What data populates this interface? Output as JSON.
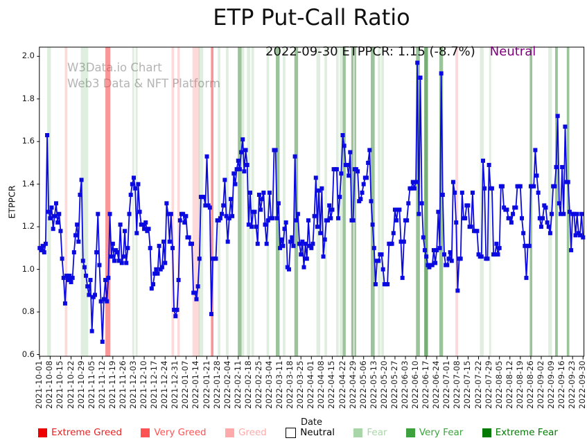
{
  "title": "ETP Put-Call Ratio",
  "watermark": {
    "line1": "W3Data.io Chart",
    "line2": "Web3 Data & NFT Platform"
  },
  "annotation": {
    "text": "2022-09-30 ETPPCR: 1.15 (-8.7%)",
    "sentiment": "Neutral",
    "sentiment_color": "#800080"
  },
  "y_axis": {
    "label": "ETPPCR",
    "ticks": [
      0.6,
      0.8,
      1.0,
      1.2,
      1.4,
      1.6,
      1.8,
      2.0
    ]
  },
  "x_axis": {
    "label": "Date",
    "tick_labels": [
      "2021-10-01",
      "2021-10-08",
      "2021-10-15",
      "2021-10-22",
      "2021-10-29",
      "2021-11-05",
      "2021-11-12",
      "2021-11-19",
      "2021-11-26",
      "2021-12-03",
      "2021-12-10",
      "2021-12-17",
      "2021-12-24",
      "2021-12-31",
      "2022-01-07",
      "2022-01-14",
      "2022-01-21",
      "2022-01-28",
      "2022-02-04",
      "2022-02-11",
      "2022-02-18",
      "2022-02-25",
      "2022-03-04",
      "2022-03-11",
      "2022-03-18",
      "2022-03-25",
      "2022-04-01",
      "2022-04-08",
      "2022-04-15",
      "2022-04-22",
      "2022-04-29",
      "2022-05-06",
      "2022-05-13",
      "2022-05-20",
      "2022-05-27",
      "2022-06-03",
      "2022-06-10",
      "2022-06-17",
      "2022-06-24",
      "2022-07-01",
      "2022-07-08",
      "2022-07-15",
      "2022-07-22",
      "2022-07-29",
      "2022-08-05",
      "2022-08-12",
      "2022-08-19",
      "2022-08-26",
      "2022-09-02",
      "2022-09-09",
      "2022-09-16",
      "2022-09-23",
      "2022-09-30"
    ]
  },
  "legend": {
    "items": [
      {
        "id": "extreme-greed",
        "label": "Extreme Greed",
        "color": "#ee0000",
        "text_color": "#e82222"
      },
      {
        "id": "very-greed",
        "label": "Very Greed",
        "color": "#ff5252",
        "text_color": "#ff5252"
      },
      {
        "id": "greed",
        "label": "Greed",
        "color": "#ffaaaa",
        "text_color": "#ffaaaa"
      },
      {
        "id": "neutral",
        "label": "Neutral",
        "color": "#ffffff",
        "text_color": "#000000",
        "border": "#000000"
      },
      {
        "id": "fear",
        "label": "Fear",
        "color": "#a9d6a9",
        "text_color": "#a9d6a9"
      },
      {
        "id": "very-fear",
        "label": "Very Fear",
        "color": "#3da23d",
        "text_color": "#3da23d"
      },
      {
        "id": "extreme-fear",
        "label": "Extreme Fear",
        "color": "#007a00",
        "text_color": "#007a00"
      }
    ]
  },
  "chart_data": {
    "type": "line",
    "title": "ETP Put-Call Ratio",
    "xlabel": "Date",
    "ylabel": "ETPPCR",
    "ylim": [
      0.6,
      2.0
    ],
    "x_start": "2021-10-01",
    "x_end": "2022-09-30",
    "line_color": "#0a0ae0",
    "marker": "square",
    "legend_position": "bottom",
    "grid": false,
    "latest": {
      "date": "2022-09-30",
      "value": 1.15,
      "change_pct": -8.7,
      "sentiment": "Neutral"
    },
    "series": [
      {
        "name": "ETPPCR",
        "daily_values": [
          1.1,
          1.09,
          1.11,
          1.08,
          1.12,
          1.63,
          1.27,
          1.24,
          1.29,
          1.19,
          1.25,
          1.31,
          1.22,
          1.26,
          1.18,
          1.05,
          0.96,
          0.84,
          0.97,
          0.95,
          0.97,
          0.94,
          0.96,
          1.08,
          1.16,
          1.21,
          1.13,
          1.35,
          1.42,
          1.04,
          1.01,
          0.97,
          0.92,
          0.88,
          0.95,
          0.71,
          0.87,
          0.88,
          1.08,
          1.26,
          1.02,
          0.85,
          0.66,
          0.86,
          0.95,
          0.85,
          0.96,
          1.26,
          1.06,
          1.12,
          1.04,
          1.09,
          1.08,
          1.04,
          1.21,
          1.03,
          1.06,
          1.18,
          1.03,
          1.1,
          1.26,
          1.35,
          1.4,
          1.43,
          1.38,
          1.17,
          1.4,
          1.27,
          1.21,
          1.21,
          1.19,
          1.22,
          1.18,
          1.19,
          1.1,
          0.91,
          0.93,
          0.98,
          1.0,
          0.98,
          1.11,
          1.0,
          1.01,
          1.13,
          1.03,
          1.31,
          1.26,
          1.13,
          1.26,
          1.1,
          0.81,
          0.78,
          0.81,
          0.95,
          1.23,
          1.26,
          1.26,
          1.22,
          1.25,
          1.15,
          1.15,
          1.12,
          1.12,
          0.89,
          0.89,
          0.86,
          0.92,
          1.05,
          1.34,
          1.34,
          1.34,
          1.3,
          1.53,
          1.3,
          1.29,
          0.79,
          1.05,
          1.05,
          1.05,
          1.23,
          1.23,
          1.24,
          1.26,
          1.3,
          1.42,
          1.25,
          1.13,
          1.24,
          1.33,
          1.25,
          1.45,
          1.4,
          1.47,
          1.51,
          1.47,
          1.55,
          1.61,
          1.46,
          1.56,
          1.49,
          1.21,
          1.36,
          1.2,
          1.27,
          1.27,
          1.2,
          1.12,
          1.35,
          1.28,
          1.33,
          1.36,
          1.21,
          1.12,
          1.23,
          1.36,
          1.24,
          1.24,
          1.56,
          1.56,
          1.24,
          1.31,
          1.1,
          1.14,
          1.11,
          1.19,
          1.22,
          1.01,
          1.0,
          1.13,
          1.15,
          1.11,
          1.53,
          1.23,
          1.26,
          1.12,
          1.07,
          1.13,
          1.01,
          1.12,
          1.05,
          1.23,
          1.11,
          1.1,
          1.12,
          1.25,
          1.43,
          1.2,
          1.37,
          1.17,
          1.38,
          1.06,
          1.14,
          1.23,
          1.23,
          1.3,
          1.24,
          1.28,
          1.47,
          1.47,
          1.47,
          1.24,
          1.34,
          1.45,
          1.63,
          1.58,
          1.49,
          1.49,
          1.44,
          1.55,
          1.23,
          1.23,
          1.47,
          1.47,
          1.46,
          1.32,
          1.33,
          1.36,
          1.4,
          1.43,
          1.43,
          1.5,
          1.56,
          1.32,
          1.21,
          1.1,
          0.93,
          1.04,
          1.04,
          1.07,
          1.07,
          1.0,
          0.93,
          0.93,
          0.93,
          1.12,
          1.12,
          1.12,
          1.17,
          1.28,
          1.23,
          1.28,
          1.28,
          1.13,
          0.96,
          1.13,
          1.23,
          1.23,
          1.31,
          1.38,
          1.38,
          1.41,
          1.38,
          1.41,
          1.97,
          1.26,
          1.9,
          1.31,
          1.15,
          1.09,
          1.06,
          1.02,
          1.01,
          1.02,
          1.02,
          1.09,
          1.03,
          1.09,
          1.27,
          1.1,
          1.92,
          1.35,
          1.07,
          1.02,
          1.02,
          1.05,
          1.08,
          1.04,
          1.41,
          1.36,
          1.22,
          0.9,
          1.05,
          1.05,
          1.36,
          1.24,
          1.24,
          1.3,
          1.3,
          1.2,
          1.2,
          1.36,
          1.18,
          1.18,
          1.18,
          1.07,
          1.06,
          1.06,
          1.51,
          1.38,
          1.05,
          1.05,
          1.49,
          1.38,
          1.38,
          1.07,
          1.07,
          1.12,
          1.07,
          1.1,
          1.39,
          1.39,
          1.29,
          1.28,
          1.28,
          1.24,
          1.24,
          1.22,
          1.26,
          1.29,
          1.29,
          1.39,
          1.39,
          1.39,
          1.24,
          1.17,
          1.11,
          0.96,
          1.11,
          1.11,
          1.39,
          1.39,
          1.39,
          1.56,
          1.44,
          1.36,
          1.24,
          1.2,
          1.24,
          1.3,
          1.29,
          1.22,
          1.2,
          1.17,
          1.26,
          1.39,
          1.39,
          1.48,
          1.72,
          1.31,
          1.26,
          1.48,
          1.26,
          1.67,
          1.41,
          1.41,
          1.27,
          1.09,
          1.26,
          1.26,
          1.16,
          1.26,
          1.17,
          1.16,
          1.26,
          1.15
        ]
      }
    ],
    "band_colors": {
      "greed": "rgba(240,70,70,0.20)",
      "very_greed": "rgba(245,45,45,0.50)",
      "fear": "rgba(44,140,44,0.15)",
      "very_fear": "rgba(34,125,34,0.45)",
      "extreme_fear": "rgba(8,105,8,0.55)"
    },
    "sentiment_bands": [
      {
        "from": 5,
        "to": 7.5,
        "level": "fear"
      },
      {
        "from": 16.8,
        "to": 18.5,
        "level": "greed"
      },
      {
        "from": 27.5,
        "to": 32.5,
        "level": "fear"
      },
      {
        "from": 44,
        "to": 47.3,
        "level": "very_greed"
      },
      {
        "from": 62,
        "to": 63.3,
        "level": "fear"
      },
      {
        "from": 64.2,
        "to": 65.6,
        "level": "fear"
      },
      {
        "from": 88.3,
        "to": 90,
        "level": "greed"
      },
      {
        "from": 92.2,
        "to": 93.9,
        "level": "greed"
      },
      {
        "from": 102.3,
        "to": 107,
        "level": "greed"
      },
      {
        "from": 106.5,
        "to": 109.5,
        "level": "fear"
      },
      {
        "from": 114.7,
        "to": 116.4,
        "level": "very_greed"
      },
      {
        "from": 119.3,
        "to": 121,
        "level": "fear"
      },
      {
        "from": 124.8,
        "to": 126.5,
        "level": "fear"
      },
      {
        "from": 132.7,
        "to": 135.2,
        "level": "very_fear"
      },
      {
        "from": 135.2,
        "to": 137,
        "level": "fear"
      },
      {
        "from": 138.8,
        "to": 141,
        "level": "fear"
      },
      {
        "from": 141.8,
        "to": 143.6,
        "level": "fear"
      },
      {
        "from": 152,
        "to": 153.7,
        "level": "fear"
      },
      {
        "from": 158.2,
        "to": 160.7,
        "level": "very_fear"
      },
      {
        "from": 162.9,
        "to": 164.6,
        "level": "fear"
      },
      {
        "from": 170.6,
        "to": 173.1,
        "level": "very_fear"
      },
      {
        "from": 185.4,
        "to": 187.9,
        "level": "fear"
      },
      {
        "from": 190.8,
        "to": 192.5,
        "level": "fear"
      },
      {
        "from": 198.6,
        "to": 200.3,
        "level": "fear"
      },
      {
        "from": 201,
        "to": 203,
        "level": "fear"
      },
      {
        "from": 203,
        "to": 205,
        "level": "very_fear"
      },
      {
        "from": 208.7,
        "to": 210.3,
        "level": "very_fear"
      },
      {
        "from": 210.8,
        "to": 212,
        "level": "very_fear"
      },
      {
        "from": 221.8,
        "to": 224.4,
        "level": "very_fear"
      },
      {
        "from": 226.5,
        "to": 228.3,
        "level": "fear"
      },
      {
        "from": 228.8,
        "to": 230.6,
        "level": "fear"
      },
      {
        "from": 252.1,
        "to": 254.7,
        "level": "very_fear"
      },
      {
        "from": 257.6,
        "to": 260.1,
        "level": "extreme_fear"
      },
      {
        "from": 267.7,
        "to": 270.2,
        "level": "very_fear"
      },
      {
        "from": 278.5,
        "to": 280.3,
        "level": "greed"
      },
      {
        "from": 294.9,
        "to": 297.4,
        "level": "fear"
      },
      {
        "from": 301.1,
        "to": 302.4,
        "level": "fear"
      },
      {
        "from": 328.3,
        "to": 330,
        "level": "very_fear"
      },
      {
        "from": 340.7,
        "to": 343.2,
        "level": "fear"
      },
      {
        "from": 345.3,
        "to": 347.1,
        "level": "very_fear"
      },
      {
        "from": 353.1,
        "to": 354.8,
        "level": "very_fear"
      }
    ]
  }
}
